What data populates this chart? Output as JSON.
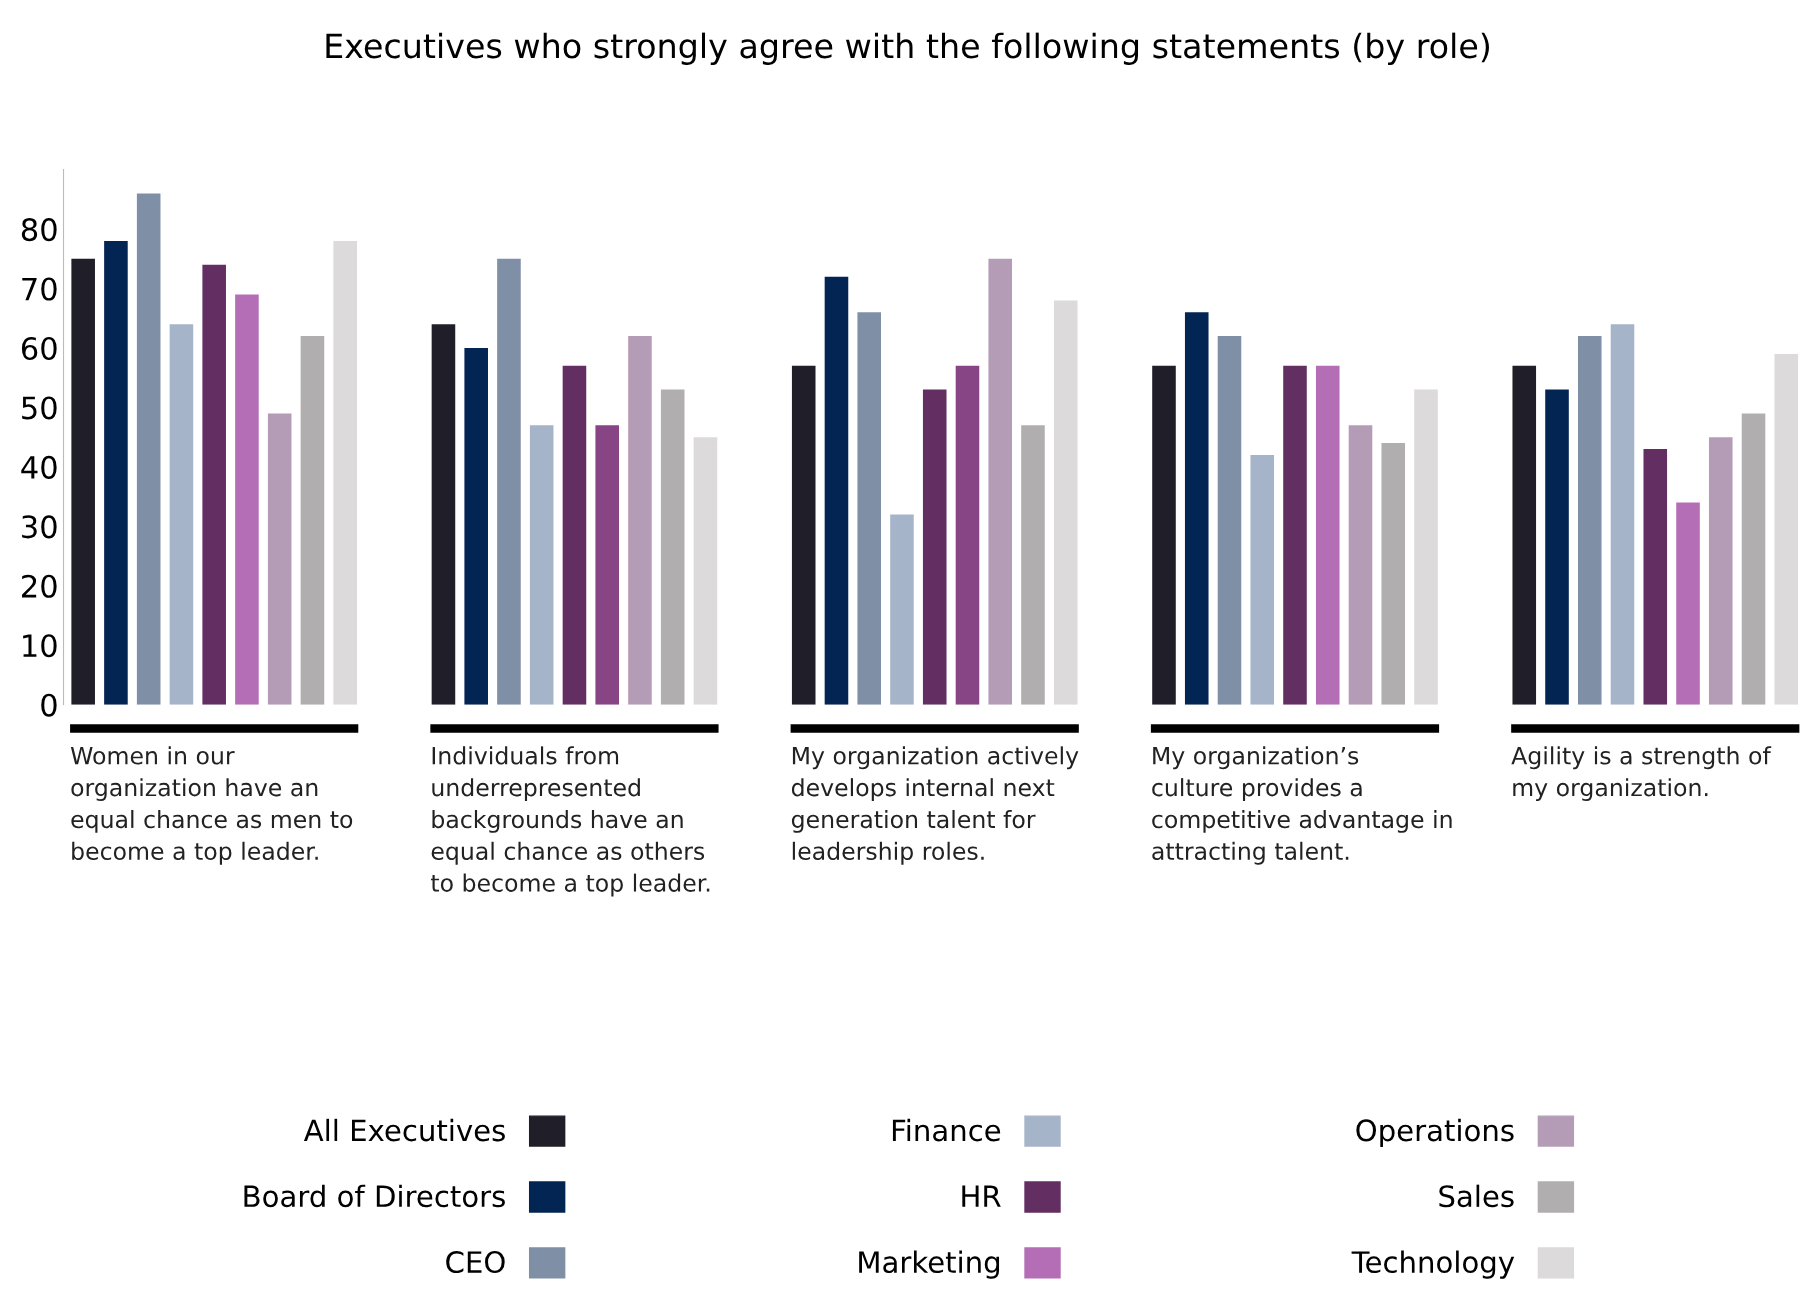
{
  "chart_data": {
    "type": "bar",
    "title": "Executives who strongly agree with the following statements (by role)",
    "categories": [
      "Women in our organization have an equal chance as men to become a top leader.",
      "Individuals from underrepresented backgrounds have an equal chance as others to become a top leader.",
      "My organization actively develops internal next generation talent for leadership roles.",
      "My organization’s culture provides a competitive advantage in attracting talent.",
      "Agility is a strength of my organization."
    ],
    "series": [
      {
        "name": "All Executives",
        "color": "#1f1e29",
        "values": [
          75,
          64,
          57,
          57,
          57
        ]
      },
      {
        "name": "Board of Directors",
        "color": "#032553",
        "values": [
          78,
          60,
          72,
          66,
          53
        ]
      },
      {
        "name": "CEO",
        "color": "#7f8fa6",
        "values": [
          86,
          75,
          66,
          62,
          62
        ]
      },
      {
        "name": "Finance",
        "color": "#a6b4c9",
        "values": [
          64,
          47,
          32,
          42,
          64
        ]
      },
      {
        "name": "HR",
        "color": "#632f63",
        "values": [
          74,
          57,
          53,
          57,
          43
        ]
      },
      {
        "name": "Marketing",
        "color": "#b46eb5",
        "colors": [
          "#b46eb5",
          "#874585",
          "#874585",
          "#b46eb5",
          "#b46eb5"
        ],
        "values": [
          69,
          47,
          57,
          57,
          34
        ]
      },
      {
        "name": "Operations",
        "color": "#b59cb6",
        "values": [
          49,
          62,
          75,
          47,
          45
        ]
      },
      {
        "name": "Sales",
        "color": "#b1aeaf",
        "values": [
          62,
          53,
          47,
          44,
          49
        ]
      },
      {
        "name": "Technology",
        "color": "#dcdadb",
        "values": [
          78,
          45,
          68,
          53,
          59
        ]
      }
    ],
    "ylim": [
      0,
      90
    ],
    "yticks": [
      0,
      10,
      20,
      30,
      40,
      50,
      60,
      70,
      80
    ],
    "grid": false,
    "legend": "bottom"
  }
}
